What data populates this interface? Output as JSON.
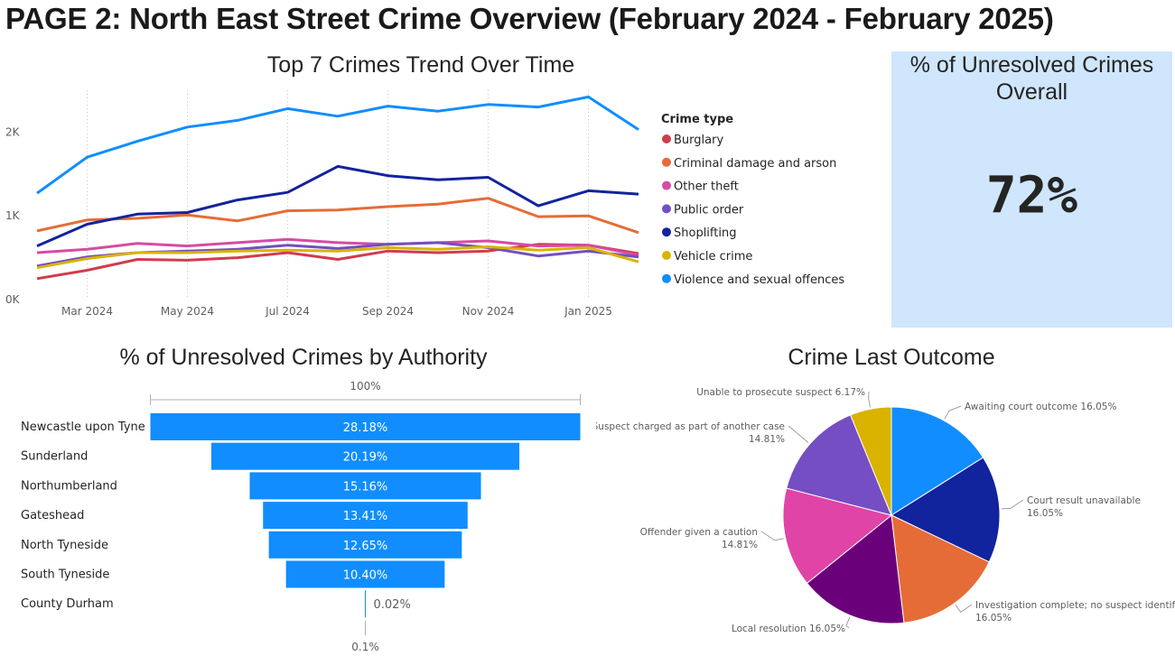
{
  "page": {
    "title": "PAGE 2: North East Street Crime Overview (February 2024 - February 2025)"
  },
  "kpi": {
    "title": "% of Unresolved Crimes Overall",
    "value": "72%"
  },
  "chart_data": [
    {
      "type": "line",
      "title": "Top 7 Crimes Trend Over Time",
      "legend_title": "Crime type",
      "legend_position": "right",
      "x": [
        "Feb 2024",
        "Mar 2024",
        "Apr 2024",
        "May 2024",
        "Jun 2024",
        "Jul 2024",
        "Aug 2024",
        "Sep 2024",
        "Oct 2024",
        "Nov 2024",
        "Dec 2024",
        "Jan 2025",
        "Feb 2025"
      ],
      "x_ticks": [
        "Mar 2024",
        "May 2024",
        "Jul 2024",
        "Sep 2024",
        "Nov 2024",
        "Jan 2025"
      ],
      "y_ticks": [
        "0K",
        "1K",
        "2K"
      ],
      "ylim": [
        0,
        2500
      ],
      "grid": "vertical dotted",
      "series": [
        {
          "name": "Burglary",
          "color": "#d13c4b",
          "values": [
            250,
            350,
            480,
            470,
            500,
            560,
            480,
            580,
            560,
            580,
            660,
            650,
            550
          ]
        },
        {
          "name": "Criminal damage and arson",
          "color": "#e66c37",
          "values": [
            820,
            950,
            970,
            1010,
            940,
            1060,
            1070,
            1110,
            1140,
            1210,
            990,
            1000,
            800
          ]
        },
        {
          "name": "Other theft",
          "color": "#d64ba4",
          "values": [
            560,
            600,
            670,
            640,
            680,
            720,
            680,
            660,
            680,
            700,
            640,
            650,
            530
          ]
        },
        {
          "name": "Public order",
          "color": "#744ec2",
          "values": [
            400,
            510,
            560,
            580,
            600,
            650,
            610,
            660,
            680,
            620,
            520,
            580,
            510
          ]
        },
        {
          "name": "Shoplifting",
          "color": "#12239e",
          "values": [
            640,
            900,
            1020,
            1040,
            1190,
            1280,
            1590,
            1480,
            1430,
            1460,
            1120,
            1300,
            1260
          ]
        },
        {
          "name": "Vehicle crime",
          "color": "#d9b300",
          "values": [
            380,
            490,
            560,
            560,
            580,
            590,
            580,
            620,
            600,
            630,
            590,
            620,
            450
          ]
        },
        {
          "name": "Violence and sexual offences",
          "color": "#118dff",
          "values": [
            1270,
            1700,
            1890,
            2060,
            2140,
            2280,
            2190,
            2310,
            2250,
            2330,
            2300,
            2420,
            2030
          ]
        }
      ]
    },
    {
      "type": "bar",
      "orientation": "funnel",
      "title": "% of Unresolved Crimes by Authority",
      "top_label": "100%",
      "bottom_label": "0.1%",
      "bar_color": "#118dff",
      "categories": [
        "Newcastle upon Tyne",
        "Sunderland",
        "Northumberland",
        "Gateshead",
        "North Tyneside",
        "South Tyneside",
        "County Durham"
      ],
      "values": [
        28.18,
        20.19,
        15.16,
        13.41,
        12.65,
        10.4,
        0.02
      ],
      "labels": [
        "28.18%",
        "20.19%",
        "15.16%",
        "13.41%",
        "12.65%",
        "10.40%",
        "0.02%"
      ]
    },
    {
      "type": "pie",
      "title": "Crime Last Outcome",
      "slices": [
        {
          "label": "Awaiting court outcome",
          "value": 16.05,
          "pct_label": "16.05%",
          "color": "#118dff"
        },
        {
          "label": "Court result unavailable",
          "value": 16.05,
          "pct_label": "16.05%",
          "color": "#12239e"
        },
        {
          "label": "Investigation complete; no suspect identified",
          "value": 16.05,
          "pct_label": "16.05%",
          "color": "#e66c37"
        },
        {
          "label": "Local resolution",
          "value": 16.05,
          "pct_label": "16.05%",
          "color": "#6b007b"
        },
        {
          "label": "Offender given a caution",
          "value": 14.81,
          "pct_label": "14.81%",
          "color": "#e044a7"
        },
        {
          "label": "Suspect charged as part of another case",
          "value": 14.81,
          "pct_label": "14.81%",
          "color": "#744ec2"
        },
        {
          "label": "Unable to prosecute suspect",
          "value": 6.17,
          "pct_label": "6.17%",
          "color": "#d9b300"
        }
      ]
    }
  ]
}
